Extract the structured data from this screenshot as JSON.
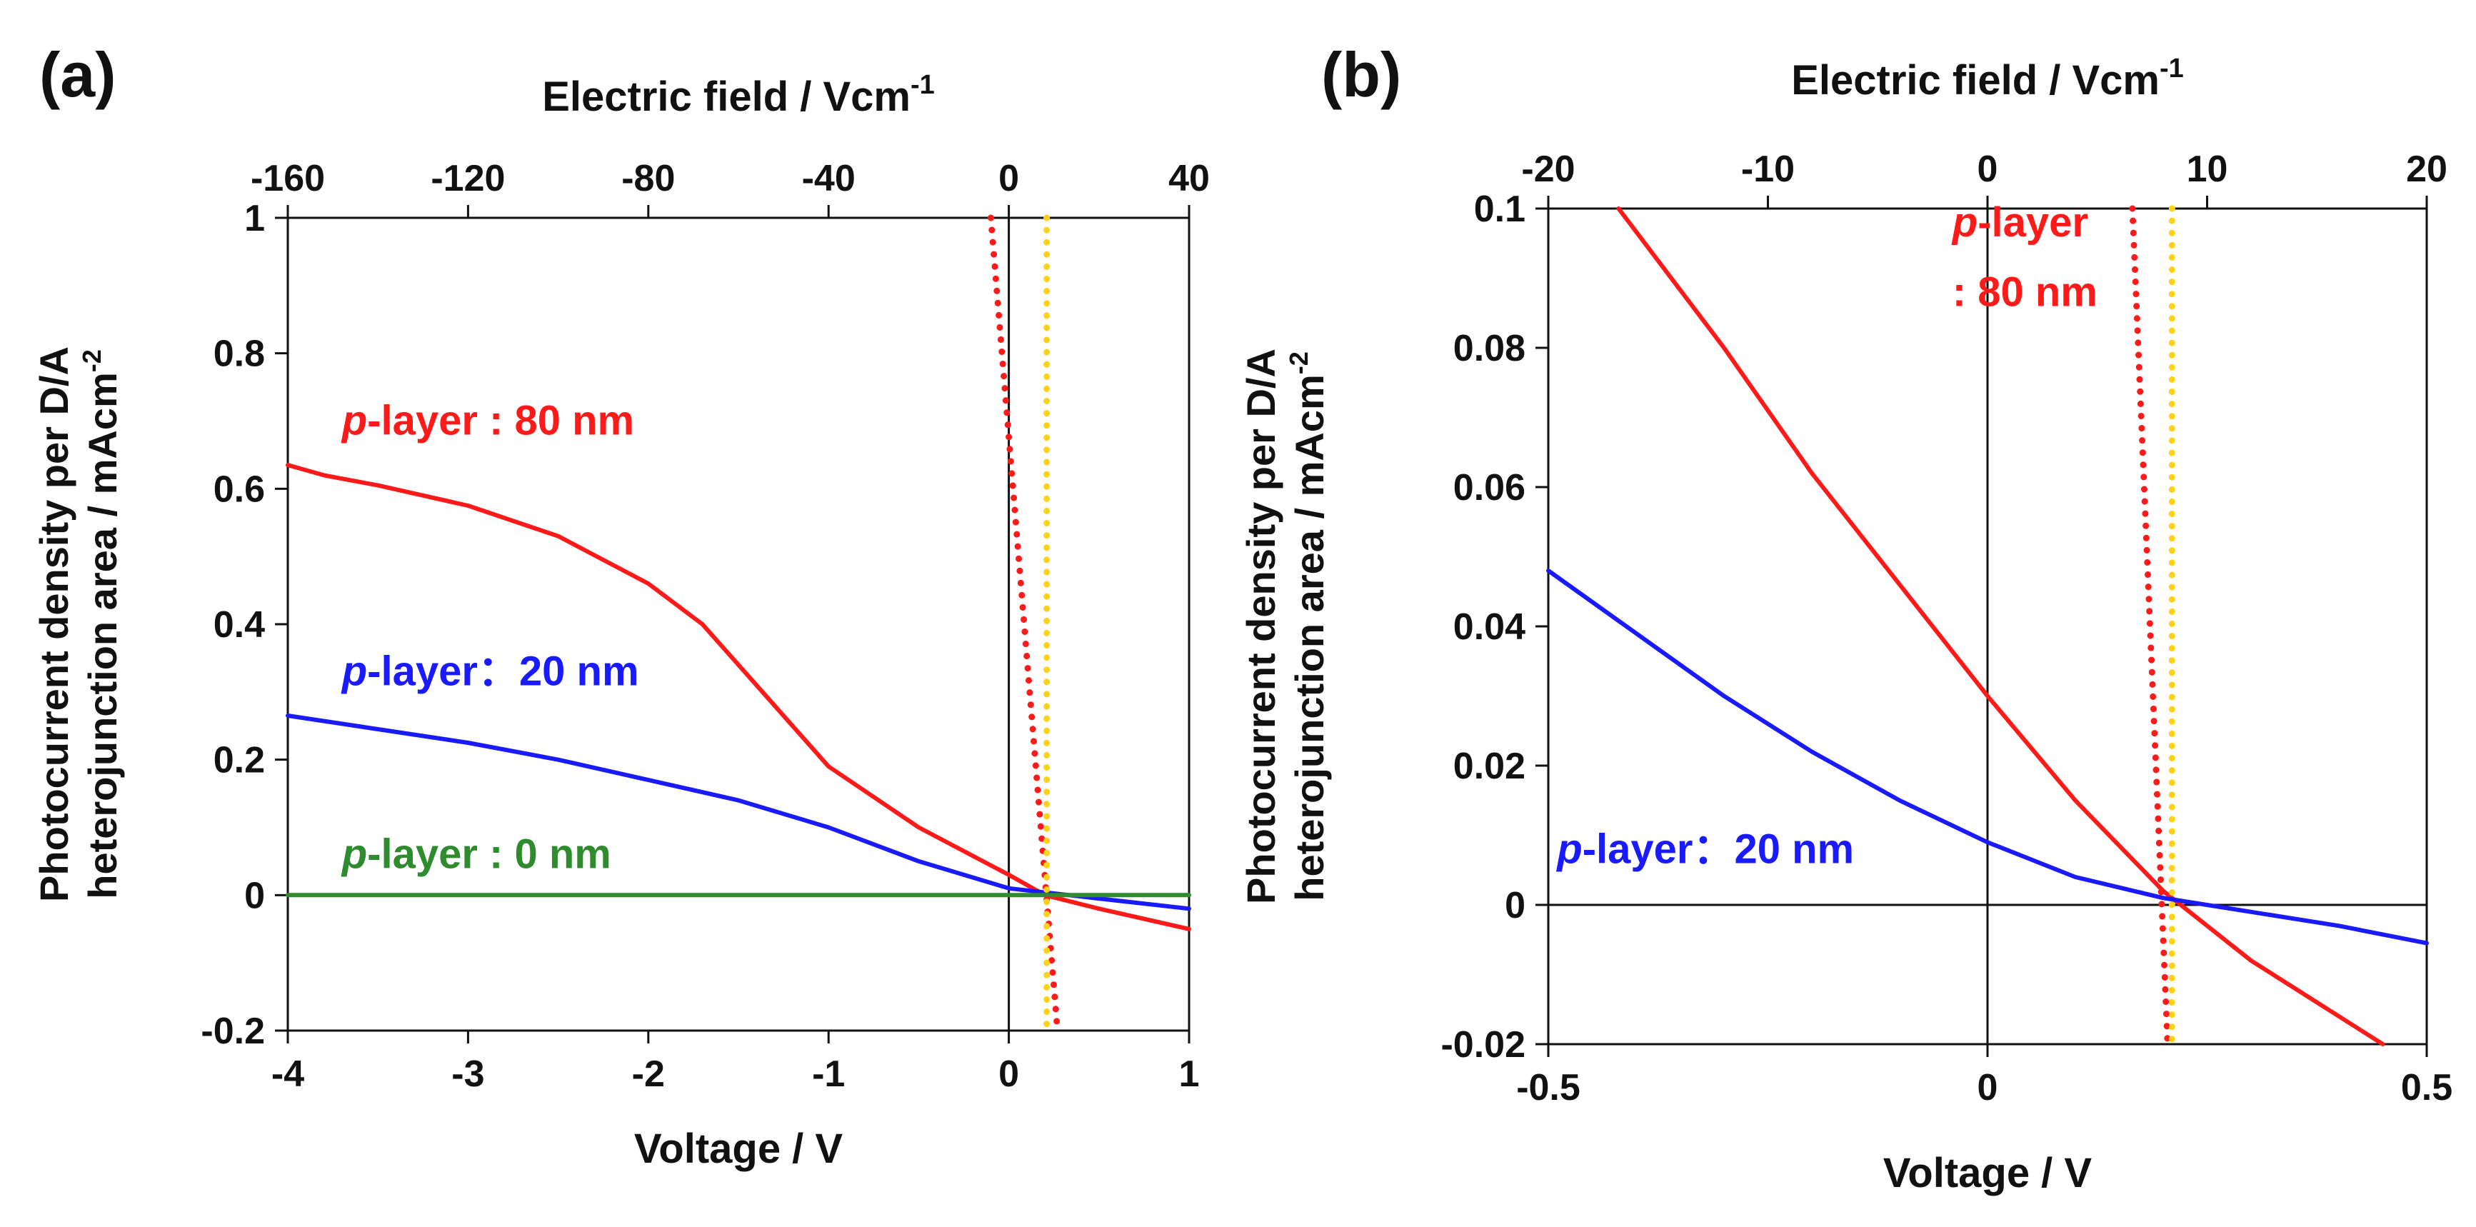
{
  "chart_data": [
    {
      "type": "line",
      "panel_label": "(a)",
      "xlabel": "Voltage / V",
      "x2label": "Electric field / Vcm",
      "x2label_sup": "-1",
      "ylabel_line1": "Photocurrent density per D/A",
      "ylabel_line2": "heterojunction area / mAcm",
      "ylabel_sup": "-2",
      "xlim": [
        -4,
        1
      ],
      "ylim": [
        -0.2,
        1
      ],
      "x2lim": [
        -160,
        40
      ],
      "xticks": [
        -4,
        -3,
        -2,
        -1,
        0,
        1
      ],
      "xtick_labels": [
        "-4",
        "-3",
        "-2",
        "-1",
        "0",
        "1"
      ],
      "yticks": [
        -0.2,
        0,
        0.2,
        0.4,
        0.6,
        0.8,
        1
      ],
      "ytick_labels": [
        "-0.2",
        "0",
        "0.2",
        "0.4",
        "0.6",
        "0.8",
        "1"
      ],
      "x2ticks": [
        -160,
        -120,
        -80,
        -40,
        0,
        40
      ],
      "x2tick_labels": [
        "-160",
        "-120",
        "-80",
        "-40",
        "0",
        "40"
      ],
      "series": [
        {
          "name": "p-layer : 80 nm",
          "color": "#ff1a1a",
          "x": [
            -4,
            -3.8,
            -3.5,
            -3,
            -2.5,
            -2,
            -1.7,
            -1.5,
            -1.2,
            -1,
            -0.5,
            0,
            0.2,
            0.5,
            1
          ],
          "y": [
            0.635,
            0.62,
            0.605,
            0.575,
            0.53,
            0.46,
            0.4,
            0.34,
            0.25,
            0.19,
            0.1,
            0.03,
            0.0,
            -0.02,
            -0.05
          ]
        },
        {
          "name": "p-layer：20 nm",
          "color": "#1a1aff",
          "x": [
            -4,
            -3.5,
            -3,
            -2.5,
            -2,
            -1.5,
            -1,
            -0.5,
            0,
            0.5,
            1
          ],
          "y": [
            0.265,
            0.245,
            0.225,
            0.2,
            0.17,
            0.14,
            0.1,
            0.05,
            0.01,
            -0.005,
            -0.02
          ]
        },
        {
          "name": "p-layer : 0 nm",
          "color": "#2e8b2e",
          "x": [
            -4,
            1
          ],
          "y": [
            0,
            0
          ]
        },
        {
          "name": "red dotted line",
          "color": "#ff1a1a",
          "style": "dotted",
          "x": [
            -0.1,
            0.27
          ],
          "y": [
            1,
            -0.2
          ]
        },
        {
          "name": "yellow dotted line",
          "color": "#ffd21a",
          "style": "dotted",
          "x": [
            0.21,
            0.21
          ],
          "y": [
            1,
            -0.2
          ]
        }
      ],
      "annotations": [
        {
          "italic": "p",
          "rest": "-layer : 80 nm",
          "color": "#ff1a1a",
          "x": -3.7,
          "y": 0.68
        },
        {
          "italic": "p",
          "rest": "-layer：20 nm",
          "color": "#1a1aff",
          "x": -3.7,
          "y": 0.31
        },
        {
          "italic": "p",
          "rest": "-layer : 0 nm",
          "color": "#2e8b2e",
          "x": -3.7,
          "y": 0.04
        }
      ]
    },
    {
      "type": "line",
      "panel_label": "(b)",
      "xlabel": "Voltage / V",
      "x2label": "Electric field / Vcm",
      "x2label_sup": "-1",
      "ylabel_line1": "Photocurrent density per D/A",
      "ylabel_line2": "heterojunction area / mAcm",
      "ylabel_sup": "-2",
      "xlim": [
        -0.5,
        0.5
      ],
      "ylim": [
        -0.02,
        0.1
      ],
      "x2lim": [
        -20,
        20
      ],
      "xticks": [
        -0.5,
        0,
        0.5
      ],
      "xtick_labels": [
        "-0.5",
        "0",
        "0.5"
      ],
      "yticks": [
        -0.02,
        0,
        0.02,
        0.04,
        0.06,
        0.08,
        0.1
      ],
      "ytick_labels": [
        "-0.02",
        "0",
        "0.02",
        "0.04",
        "0.06",
        "0.08",
        "0.1"
      ],
      "x2ticks": [
        -20,
        -10,
        0,
        10,
        20
      ],
      "x2tick_labels": [
        "-20",
        "-10",
        "0",
        "10",
        "20"
      ],
      "series": [
        {
          "name": "p-layer : 80 nm",
          "color": "#ff1a1a",
          "x": [
            -0.42,
            -0.3,
            -0.2,
            -0.1,
            0,
            0.1,
            0.2,
            0.3,
            0.45
          ],
          "y": [
            0.1,
            0.08,
            0.062,
            0.046,
            0.03,
            0.015,
            0.002,
            -0.008,
            -0.02
          ]
        },
        {
          "name": "p-layer：20 nm",
          "color": "#1a1aff",
          "x": [
            -0.5,
            -0.4,
            -0.3,
            -0.2,
            -0.1,
            0,
            0.1,
            0.2,
            0.3,
            0.4,
            0.5
          ],
          "y": [
            0.048,
            0.039,
            0.03,
            0.022,
            0.015,
            0.009,
            0.004,
            0.001,
            -0.001,
            -0.003,
            -0.0055
          ]
        },
        {
          "name": "red dotted line",
          "color": "#ff1a1a",
          "style": "dotted",
          "x": [
            0.165,
            0.205
          ],
          "y": [
            0.1,
            -0.02
          ]
        },
        {
          "name": "yellow dotted line",
          "color": "#ffd21a",
          "style": "dotted",
          "x": [
            0.21,
            0.21
          ],
          "y": [
            0.1,
            -0.02
          ]
        }
      ],
      "annotations": [
        {
          "italic": "p",
          "rest": "-layer",
          "color": "#ff1a1a",
          "x": -0.04,
          "y": 0.096
        },
        {
          "italic": "",
          "rest": ": 80 nm",
          "color": "#ff1a1a",
          "x": -0.04,
          "y": 0.086
        },
        {
          "italic": "p",
          "rest": "-layer：20 nm",
          "color": "#1a1aff",
          "x": -0.49,
          "y": 0.006
        }
      ]
    }
  ]
}
